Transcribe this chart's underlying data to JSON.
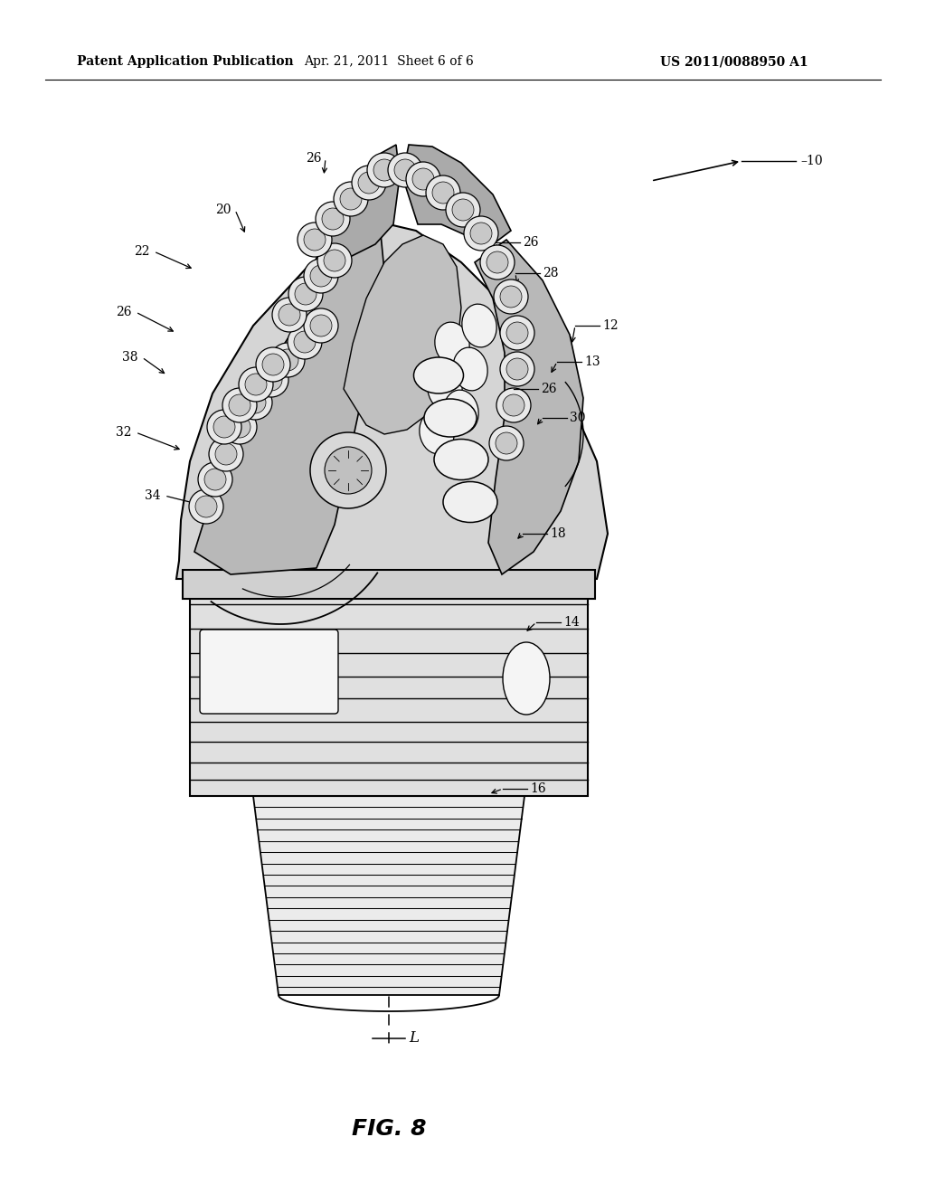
{
  "background_color": "#ffffff",
  "header_left": "Patent Application Publication",
  "header_center": "Apr. 21, 2011  Sheet 6 of 6",
  "header_right": "US 2011/0088950 A1",
  "figure_label": "FIG. 8",
  "header_fontsize": 10,
  "figure_label_fontsize": 18,
  "line_color": "#000000",
  "text_color": "#000000"
}
